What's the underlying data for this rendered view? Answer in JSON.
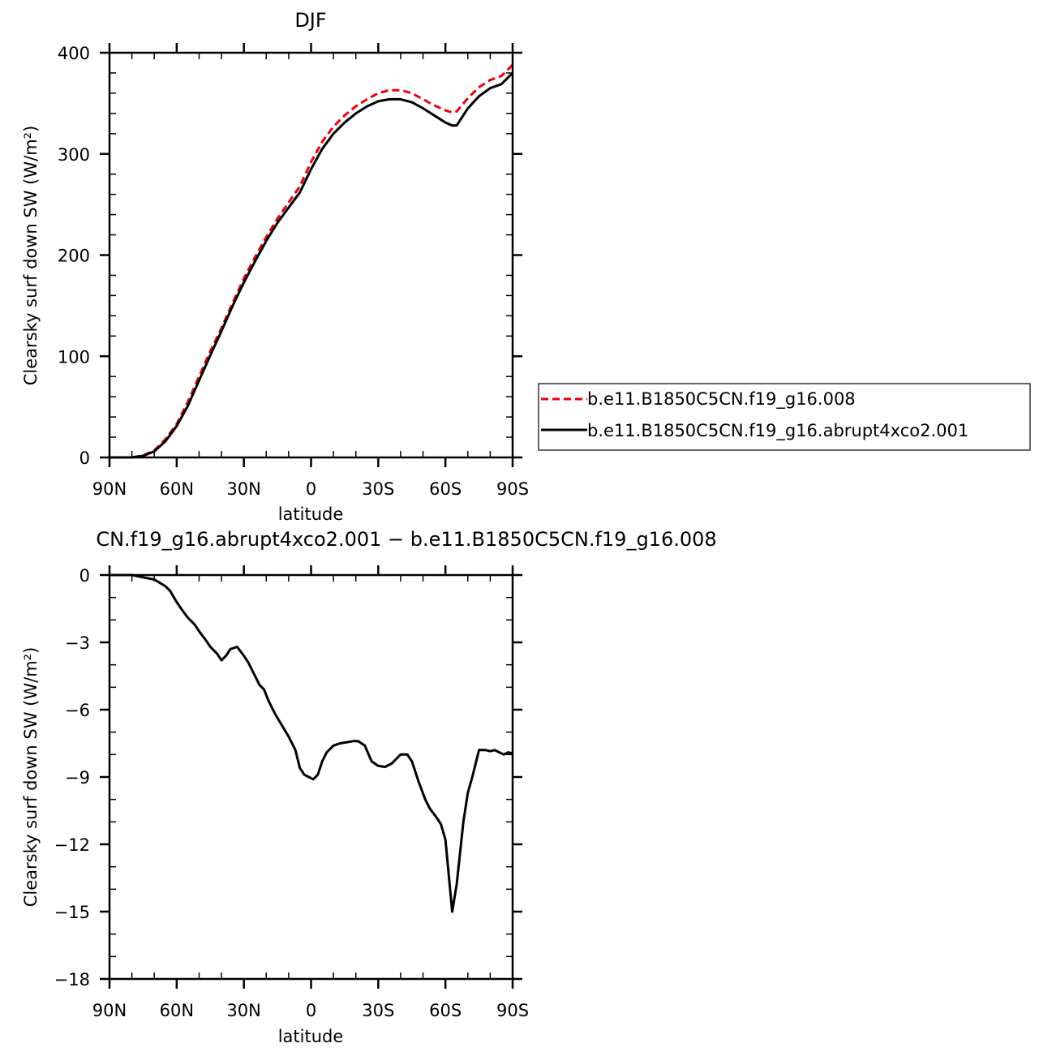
{
  "chart_data": [
    {
      "type": "line",
      "title": "DJF",
      "xlabel": "latitude",
      "ylabel": "Clearsky surf down SW (W/m²)",
      "xlim": [
        90,
        -90
      ],
      "ylim": [
        0,
        400
      ],
      "x_ticks": [
        90,
        60,
        30,
        0,
        -30,
        -60,
        -90
      ],
      "x_tick_labels": [
        "90N",
        "60N",
        "30N",
        "0",
        "30S",
        "60S",
        "90S"
      ],
      "y_ticks": [
        0,
        100,
        200,
        300,
        400
      ],
      "y_tick_labels": [
        "0",
        "100",
        "200",
        "300",
        "400"
      ],
      "legend_position": "right",
      "series": [
        {
          "name": "b.e11.B1850C5CN.f19_g16.008",
          "color": "#e8000b",
          "dash": "dashed",
          "x": [
            90,
            80,
            75,
            70,
            65,
            60,
            55,
            50,
            45,
            40,
            35,
            30,
            25,
            20,
            15,
            10,
            5,
            0,
            -5,
            -10,
            -15,
            -20,
            -25,
            -30,
            -35,
            -40,
            -45,
            -50,
            -55,
            -60,
            -63,
            -65,
            -70,
            -75,
            -80,
            -85,
            -90
          ],
          "y": [
            0,
            0,
            2,
            7,
            18,
            33,
            55,
            80,
            105,
            128,
            153,
            177,
            198,
            218,
            236,
            252,
            268,
            292,
            312,
            327,
            338,
            347,
            354,
            360,
            363,
            363,
            360,
            354,
            348,
            343,
            341,
            342,
            355,
            366,
            373,
            377,
            388
          ]
        },
        {
          "name": "b.e11.B1850C5CN.f19_g16.abrupt4xco2.001",
          "color": "#000000",
          "dash": "solid",
          "x": [
            90,
            80,
            75,
            70,
            65,
            60,
            55,
            50,
            45,
            40,
            35,
            30,
            25,
            20,
            15,
            10,
            5,
            0,
            -5,
            -10,
            -15,
            -20,
            -25,
            -30,
            -35,
            -40,
            -45,
            -50,
            -55,
            -60,
            -63,
            -65,
            -70,
            -75,
            -80,
            -85,
            -90
          ],
          "y": [
            0,
            0,
            1.5,
            6,
            16,
            31,
            51,
            76,
            101,
            125,
            150,
            173,
            194,
            214,
            232,
            247,
            262,
            285,
            305,
            320,
            331,
            340,
            347,
            352,
            354,
            354,
            351,
            345,
            338,
            331,
            328,
            328,
            345,
            357,
            365,
            369,
            380
          ]
        }
      ]
    },
    {
      "type": "line",
      "title": "CN.f19_g16.abrupt4xco2.001 − b.e11.B1850C5CN.f19_g16.008",
      "xlabel": "latitude",
      "ylabel": "Clearsky surf down SW (W/m²)",
      "xlim": [
        90,
        -90
      ],
      "ylim": [
        -18,
        0
      ],
      "x_ticks": [
        90,
        60,
        30,
        0,
        -30,
        -60,
        -90
      ],
      "x_tick_labels": [
        "90N",
        "60N",
        "30N",
        "0",
        "30S",
        "60S",
        "90S"
      ],
      "y_ticks": [
        0,
        -3,
        -6,
        -9,
        -12,
        -15,
        -18
      ],
      "y_tick_labels": [
        "0",
        "−3",
        "−6",
        "−9",
        "−12",
        "−15",
        "−18"
      ],
      "series": [
        {
          "color": "#000000",
          "dash": "solid",
          "x": [
            90,
            80,
            75,
            70,
            65,
            63,
            60,
            58,
            55,
            52,
            50,
            47,
            45,
            42,
            40,
            38,
            36,
            33,
            30,
            28,
            26,
            23,
            21,
            19,
            16,
            13,
            10,
            7,
            5,
            3,
            1,
            -1,
            -3,
            -5,
            -7,
            -10,
            -13,
            -16,
            -19,
            -21,
            -24,
            -27,
            -30,
            -33,
            -36,
            -40,
            -43,
            -45,
            -48,
            -51,
            -53,
            -56,
            -58,
            -60,
            -63,
            -65,
            -68,
            -70,
            -72,
            -75,
            -78,
            -80,
            -82,
            -84,
            -86,
            -88,
            -90
          ],
          "y": [
            0,
            0,
            -0.1,
            -0.2,
            -0.5,
            -0.7,
            -1.2,
            -1.5,
            -1.9,
            -2.2,
            -2.5,
            -2.9,
            -3.2,
            -3.5,
            -3.8,
            -3.6,
            -3.3,
            -3.2,
            -3.6,
            -3.9,
            -4.3,
            -4.9,
            -5.1,
            -5.6,
            -6.2,
            -6.7,
            -7.2,
            -7.8,
            -8.6,
            -8.9,
            -9.0,
            -9.1,
            -8.9,
            -8.3,
            -7.9,
            -7.6,
            -7.5,
            -7.45,
            -7.4,
            -7.4,
            -7.6,
            -8.3,
            -8.5,
            -8.55,
            -8.4,
            -8.0,
            -8.0,
            -8.3,
            -9.2,
            -10.0,
            -10.4,
            -10.8,
            -11.1,
            -11.8,
            -15.0,
            -13.8,
            -11.0,
            -9.7,
            -9.0,
            -7.8,
            -7.8,
            -7.85,
            -7.8,
            -7.9,
            -8.0,
            -7.9,
            -7.95
          ]
        }
      ]
    }
  ]
}
